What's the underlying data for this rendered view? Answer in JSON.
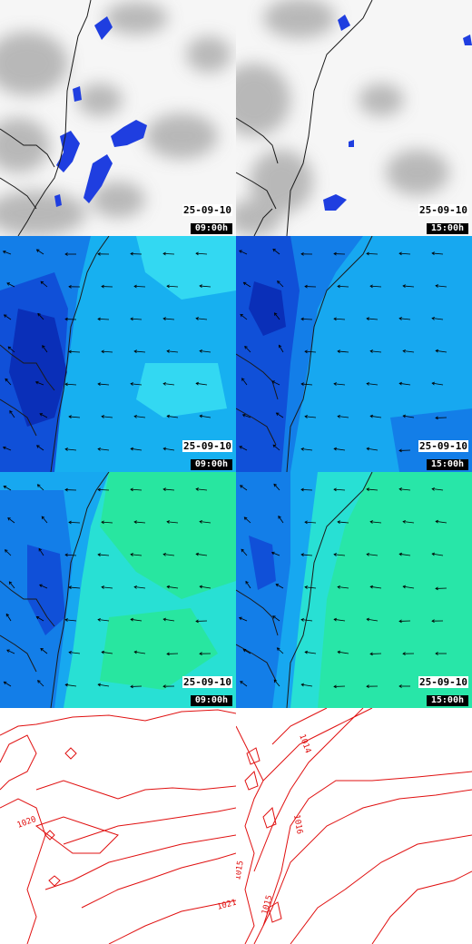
{
  "colors": {
    "coast": "#1a1a1a",
    "rain": "#1f3ee0",
    "isobar": "#e01010",
    "arrow": "#000000"
  },
  "rows": [
    {
      "name": "cloud-precip",
      "panels": [
        {
          "date": "25-09-10",
          "time": "09:00h"
        },
        {
          "date": "25-09-10",
          "time": "15:00h"
        }
      ]
    },
    {
      "name": "wind-field-1",
      "panels": [
        {
          "date": "25-09-10",
          "time": "09:00h"
        },
        {
          "date": "25-09-10",
          "time": "15:00h"
        }
      ]
    },
    {
      "name": "wind-field-2",
      "panels": [
        {
          "date": "25-09-10",
          "time": "09:00h"
        },
        {
          "date": "25-09-10",
          "time": "15:00h"
        }
      ]
    },
    {
      "name": "pressure",
      "panels": [
        {
          "labels": [
            "1020",
            "1021"
          ]
        },
        {
          "labels": [
            "1014",
            "1016",
            "1015",
            "1015"
          ]
        }
      ]
    }
  ]
}
